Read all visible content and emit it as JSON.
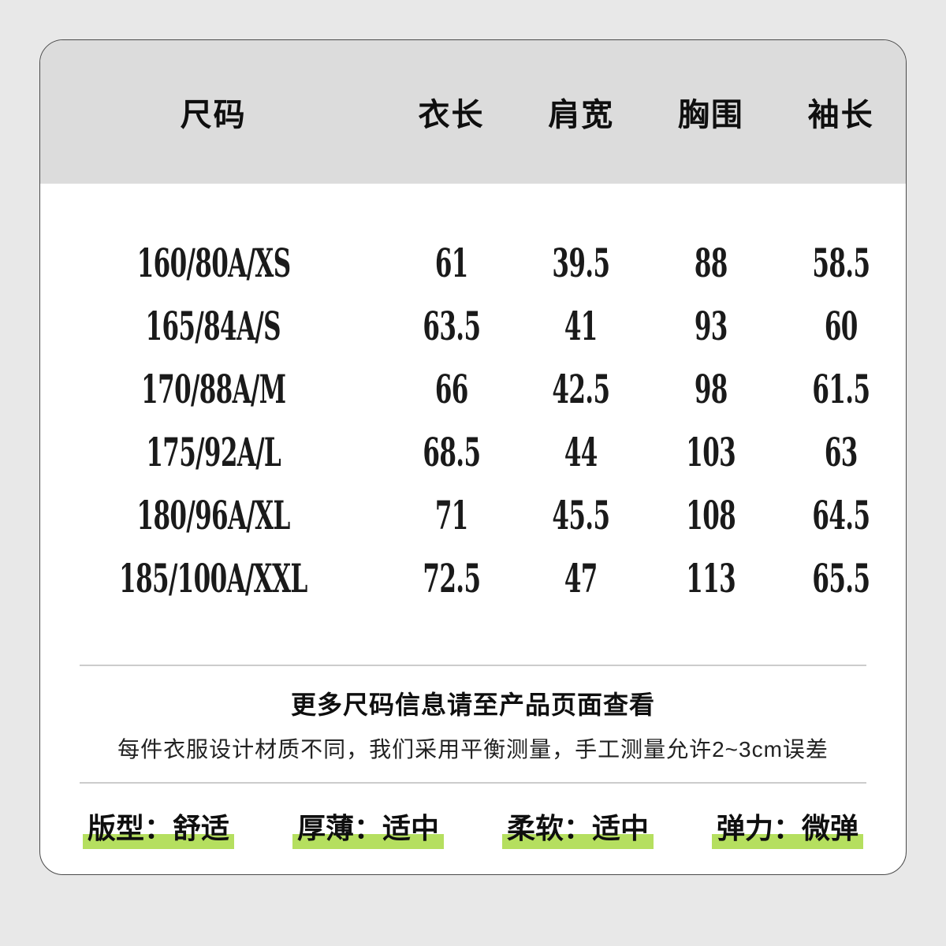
{
  "table": {
    "headers": [
      "尺码",
      "衣长",
      "肩宽",
      "胸围",
      "袖长"
    ],
    "rows": [
      {
        "size": "160/80A/XS",
        "values": [
          "61",
          "39.5",
          "88",
          "58.5"
        ]
      },
      {
        "size": "165/84A/S",
        "values": [
          "63.5",
          "41",
          "93",
          "60"
        ]
      },
      {
        "size": "170/88A/M",
        "values": [
          "66",
          "42.5",
          "98",
          "61.5"
        ]
      },
      {
        "size": "175/92A/L",
        "values": [
          "68.5",
          "44",
          "103",
          "63"
        ]
      },
      {
        "size": "180/96A/XL",
        "values": [
          "71",
          "45.5",
          "108",
          "64.5"
        ]
      },
      {
        "size": "185/100A/XXL",
        "values": [
          "72.5",
          "47",
          "113",
          "65.5"
        ]
      }
    ]
  },
  "note": {
    "title": "更多尺码信息请至产品页面查看",
    "subtitle": "每件衣服设计材质不同，我们采用平衡测量，手工测量允许2~3cm误差"
  },
  "attributes": [
    {
      "text": "版型：舒适"
    },
    {
      "text": "厚薄：适中"
    },
    {
      "text": "柔软：适中"
    },
    {
      "text": "弹力：微弹"
    }
  ],
  "colors": {
    "highlight": "#b5df5f",
    "header_bg": "#dcdcdc",
    "page_bg": "#e8e8e8",
    "card_bg": "#ffffff",
    "border": "#4a4a4a",
    "divider": "#cccccc"
  },
  "chart_data": {
    "type": "table",
    "title": "服装尺码表",
    "columns": [
      "尺码",
      "衣长",
      "肩宽",
      "胸围",
      "袖长"
    ],
    "rows": [
      [
        "160/80A/XS",
        61,
        39.5,
        88,
        58.5
      ],
      [
        "165/84A/S",
        63.5,
        41,
        93,
        60
      ],
      [
        "170/88A/M",
        66,
        42.5,
        98,
        61.5
      ],
      [
        "175/92A/L",
        68.5,
        44,
        103,
        63
      ],
      [
        "180/96A/XL",
        71,
        45.5,
        108,
        64.5
      ],
      [
        "185/100A/XXL",
        72.5,
        47,
        113,
        65.5
      ]
    ],
    "footnotes": [
      "更多尺码信息请至产品页面查看",
      "每件衣服设计材质不同，我们采用平衡测量，手工测量允许2~3cm误差"
    ],
    "badges": [
      "版型：舒适",
      "厚薄：适中",
      "柔软：适中",
      "弹力：微弹"
    ]
  }
}
